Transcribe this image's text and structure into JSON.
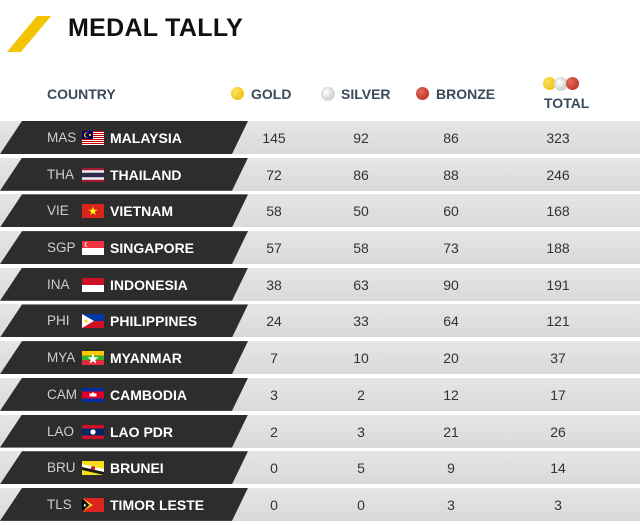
{
  "title": "MEDAL TALLY",
  "colors": {
    "accent": "#f2c500",
    "row_dark": "#2d2d2d",
    "row_light": "#e0e0e0"
  },
  "headers": {
    "country": "COUNTRY",
    "gold": "GOLD",
    "silver": "SILVER",
    "bronze": "BRONZE",
    "total": "TOTAL"
  },
  "rows": [
    {
      "code": "MAS",
      "name": "MALAYSIA",
      "flag": "malaysia-flag-icon",
      "gold": "145",
      "silver": "92",
      "bronze": "86",
      "total": "323"
    },
    {
      "code": "THA",
      "name": "THAILAND",
      "flag": "thailand-flag-icon",
      "gold": "72",
      "silver": "86",
      "bronze": "88",
      "total": "246"
    },
    {
      "code": "VIE",
      "name": "VIETNAM",
      "flag": "vietnam-flag-icon",
      "gold": "58",
      "silver": "50",
      "bronze": "60",
      "total": "168"
    },
    {
      "code": "SGP",
      "name": "SINGAPORE",
      "flag": "singapore-flag-icon",
      "gold": "57",
      "silver": "58",
      "bronze": "73",
      "total": "188"
    },
    {
      "code": "INA",
      "name": "INDONESIA",
      "flag": "indonesia-flag-icon",
      "gold": "38",
      "silver": "63",
      "bronze": "90",
      "total": "191"
    },
    {
      "code": "PHI",
      "name": "PHILIPPINES",
      "flag": "philippines-flag-icon",
      "gold": "24",
      "silver": "33",
      "bronze": "64",
      "total": "121"
    },
    {
      "code": "MYA",
      "name": "MYANMAR",
      "flag": "myanmar-flag-icon",
      "gold": "7",
      "silver": "10",
      "bronze": "20",
      "total": "37"
    },
    {
      "code": "CAM",
      "name": "CAMBODIA",
      "flag": "cambodia-flag-icon",
      "gold": "3",
      "silver": "2",
      "bronze": "12",
      "total": "17"
    },
    {
      "code": "LAO",
      "name": "LAO PDR",
      "flag": "laos-flag-icon",
      "gold": "2",
      "silver": "3",
      "bronze": "21",
      "total": "26"
    },
    {
      "code": "BRU",
      "name": "BRUNEI",
      "flag": "brunei-flag-icon",
      "gold": "0",
      "silver": "5",
      "bronze": "9",
      "total": "14"
    },
    {
      "code": "TLS",
      "name": "TIMOR LESTE",
      "flag": "timor-leste-flag-icon",
      "gold": "0",
      "silver": "0",
      "bronze": "3",
      "total": "3"
    }
  ]
}
